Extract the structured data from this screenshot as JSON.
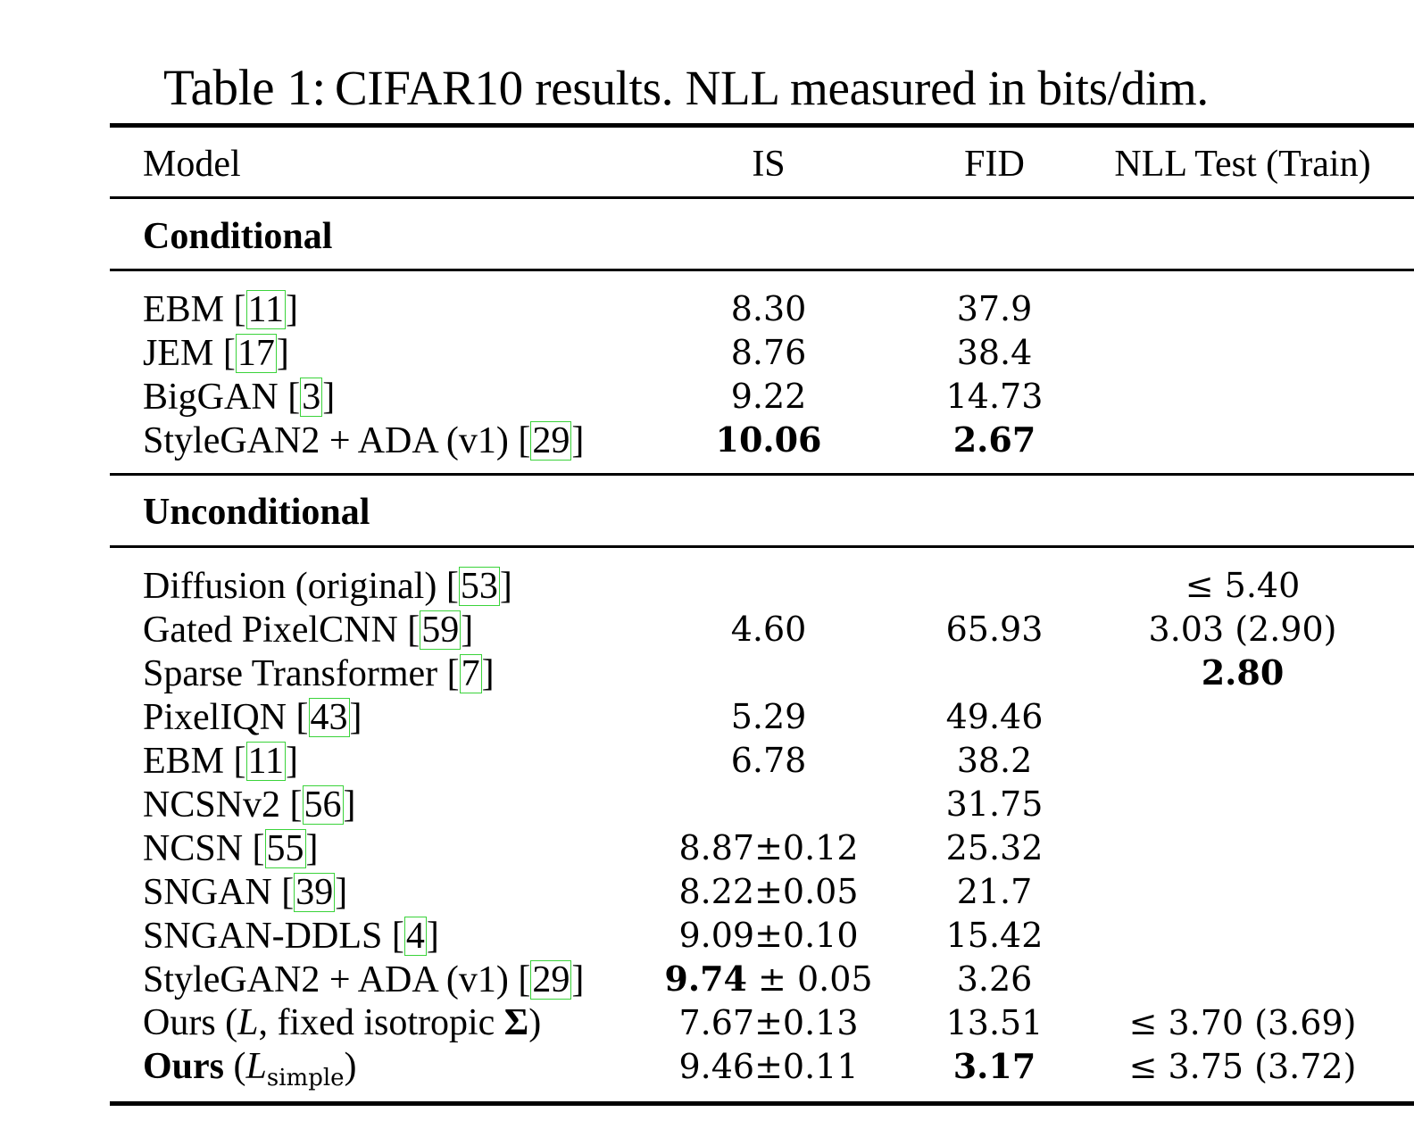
{
  "caption": {
    "label": "Table 1:",
    "text": "CIFAR10 results. NLL measured in bits/dim."
  },
  "header": {
    "model": "Model",
    "is": "IS",
    "fid": "FID",
    "nll": "NLL Test (Train)"
  },
  "sections": {
    "conditional": "Conditional",
    "unconditional": "Unconditional"
  },
  "conditional_rows": [
    {
      "model": "EBM",
      "cite": "11",
      "is": "8.30",
      "fid": "37.9",
      "nll": ""
    },
    {
      "model": "JEM",
      "cite": "17",
      "is": "8.76",
      "fid": "38.4",
      "nll": ""
    },
    {
      "model": "BigGAN",
      "cite": "3",
      "is": "9.22",
      "fid": "14.73",
      "nll": ""
    },
    {
      "model": "StyleGAN2 + ADA (v1)",
      "cite": "29",
      "is": "10.06",
      "fid": "2.67",
      "nll": ""
    }
  ],
  "unconditional_rows": [
    {
      "model": "Diffusion (original)",
      "cite": "53",
      "is": "",
      "fid": "",
      "nll": "≤ 5.40"
    },
    {
      "model": "Gated PixelCNN",
      "cite": "59",
      "is": "4.60",
      "fid": "65.93",
      "nll": "3.03 (2.90)"
    },
    {
      "model": "Sparse Transformer",
      "cite": "7",
      "is": "",
      "fid": "",
      "nll": "2.80"
    },
    {
      "model": "PixelIQN",
      "cite": "43",
      "is": "5.29",
      "fid": "49.46",
      "nll": ""
    },
    {
      "model": "EBM",
      "cite": "11",
      "is": "6.78",
      "fid": "38.2",
      "nll": ""
    },
    {
      "model": "NCSNv2",
      "cite": "56",
      "is": "",
      "fid": "31.75",
      "nll": ""
    },
    {
      "model": "NCSN",
      "cite": "55",
      "is": "8.87±0.12",
      "fid": "25.32",
      "nll": ""
    },
    {
      "model": "SNGAN",
      "cite": "39",
      "is": "8.22±0.05",
      "fid": "21.7",
      "nll": ""
    },
    {
      "model": "SNGAN-DDLS",
      "cite": "4",
      "is": "9.09±0.10",
      "fid": "15.42",
      "nll": ""
    },
    {
      "model": "StyleGAN2 + ADA (v1)",
      "cite": "29",
      "is_main": "9.74",
      "is_rest": " ± 0.05",
      "fid": "3.26",
      "nll": ""
    }
  ],
  "ours_rows": [
    {
      "model_prefix": "Ours (",
      "loss_symbol": "L",
      "model_mid": ", fixed isotropic ",
      "sigma_symbol": "Σ",
      "model_suffix": ")",
      "is": "7.67±0.13",
      "fid": "13.51",
      "nll": "≤ 3.70 (3.69)"
    },
    {
      "model_prefix": "Ours",
      "model_open": " (",
      "loss_symbol": "L",
      "loss_sub": "simple",
      "model_suffix": ")",
      "is": "9.46±0.11",
      "fid": "3.17",
      "nll": "≤ 3.75 (3.72)"
    }
  ]
}
